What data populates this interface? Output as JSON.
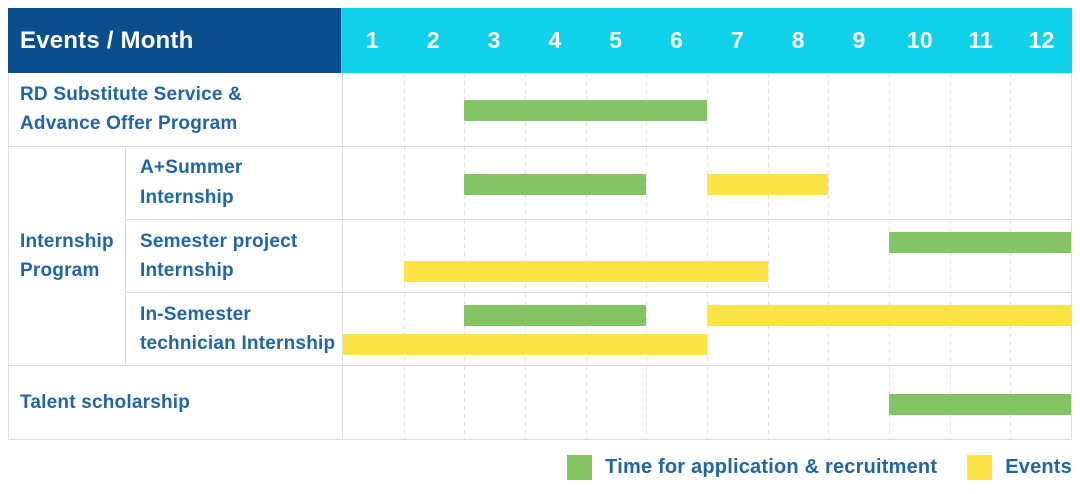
{
  "colors": {
    "header_bg": "#0a4e8e",
    "month_header_bg": "#0fd2ea",
    "green": "#84c563",
    "yellow": "#fde344",
    "label_text": "#1e65ac",
    "header_text": "#ffffff",
    "grid_border": "#dcdcdc"
  },
  "header": {
    "title": "Events / Month"
  },
  "chart_data": {
    "type": "bar",
    "variant": "gantt-schedule",
    "x_axis": "Month",
    "x_range": [
      1,
      12
    ],
    "months": [
      "1",
      "2",
      "3",
      "4",
      "5",
      "6",
      "7",
      "8",
      "9",
      "10",
      "11",
      "12"
    ],
    "group_label": "Internship\nProgram",
    "rows": [
      {
        "label": "RD Substitute Service &\nAdvance Offer Program",
        "group": null,
        "bars": [
          {
            "series": "Time for application & recruitment",
            "color": "green",
            "start_month": 3,
            "end_month": 6,
            "line": "center"
          }
        ]
      },
      {
        "label": "A+Summer\nInternship",
        "group": "Internship Program",
        "bars": [
          {
            "series": "Time for application & recruitment",
            "color": "green",
            "start_month": 3,
            "end_month": 5,
            "line": "center"
          },
          {
            "series": "Events",
            "color": "yellow",
            "start_month": 7,
            "end_month": 8,
            "line": "center"
          }
        ]
      },
      {
        "label": "Semester project\nInternship",
        "group": "Internship Program",
        "bars": [
          {
            "series": "Time for application & recruitment",
            "color": "green",
            "start_month": 10,
            "end_month": 12,
            "line": "top"
          },
          {
            "series": "Events",
            "color": "yellow",
            "start_month": 2,
            "end_month": 7,
            "line": "bottom"
          }
        ]
      },
      {
        "label": "In-Semester\ntechnician Internship",
        "group": "Internship Program",
        "bars": [
          {
            "series": "Time for application & recruitment",
            "color": "green",
            "start_month": 3,
            "end_month": 5,
            "line": "top"
          },
          {
            "series": "Events",
            "color": "yellow",
            "start_month": 7,
            "end_month": 12,
            "line": "top"
          },
          {
            "series": "Events",
            "color": "yellow",
            "start_month": 1,
            "end_month": 6,
            "line": "bottom"
          }
        ]
      },
      {
        "label": "Talent scholarship",
        "group": null,
        "bars": [
          {
            "series": "Time for application & recruitment",
            "color": "green",
            "start_month": 10,
            "end_month": 12,
            "line": "center"
          }
        ]
      }
    ],
    "legend": [
      {
        "color": "green",
        "label": "Time for application & recruitment"
      },
      {
        "color": "yellow",
        "label": "Events"
      }
    ],
    "legend_position": "bottom-right",
    "grid": "dashed-vertical-month-lines"
  }
}
